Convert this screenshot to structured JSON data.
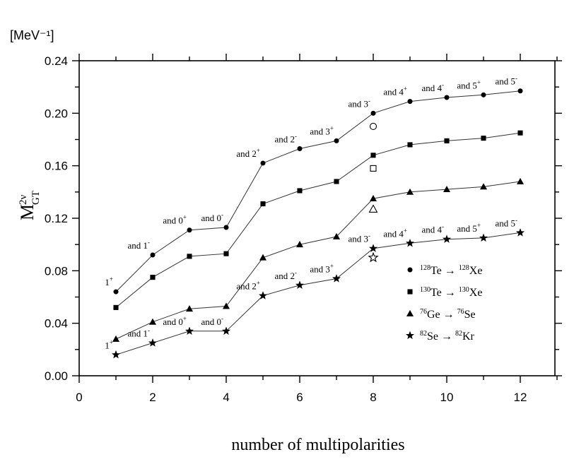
{
  "chart_data": {
    "type": "line",
    "unit_label": "[MeV⁻¹]",
    "xlabel": "number of multipolarities",
    "ylabel": "M",
    "ylabel_sup": "2ν",
    "ylabel_sub": "GT",
    "xlim": [
      0,
      13
    ],
    "ylim": [
      0,
      0.24
    ],
    "x_ticks": [
      "0",
      "2",
      "4",
      "6",
      "8",
      "10",
      "12"
    ],
    "y_ticks": [
      "0.00",
      "0.04",
      "0.08",
      "0.12",
      "0.16",
      "0.20",
      "0.24"
    ],
    "grid": false,
    "legend_position": "lower-right",
    "x": [
      1,
      2,
      3,
      4,
      5,
      6,
      7,
      8,
      9,
      10,
      11,
      12
    ],
    "series": [
      {
        "name_parts": [
          "128",
          "Te → ",
          "128",
          "Xe"
        ],
        "marker": "circle",
        "values": [
          0.064,
          0.092,
          0.111,
          0.113,
          0.162,
          0.173,
          0.179,
          0.2,
          0.209,
          0.212,
          0.214,
          0.217
        ],
        "open_point": {
          "x": 8,
          "y": 0.19
        }
      },
      {
        "name_parts": [
          "130",
          "Te → ",
          "130",
          "Xe"
        ],
        "marker": "square",
        "values": [
          0.052,
          0.075,
          0.091,
          0.093,
          0.131,
          0.141,
          0.148,
          0.168,
          0.176,
          0.179,
          0.181,
          0.185
        ],
        "open_point": {
          "x": 8,
          "y": 0.158
        }
      },
      {
        "name_parts": [
          "76",
          "Ge → ",
          "76",
          "Se"
        ],
        "marker": "triangle",
        "values": [
          0.028,
          0.041,
          0.051,
          0.053,
          0.09,
          0.1,
          0.106,
          0.135,
          0.14,
          0.142,
          0.144,
          0.148
        ],
        "open_point": {
          "x": 8,
          "y": 0.127
        }
      },
      {
        "name_parts": [
          "82",
          "Se → ",
          "82",
          "Kr"
        ],
        "marker": "star",
        "values": [
          0.016,
          0.025,
          0.034,
          0.034,
          0.061,
          0.069,
          0.074,
          0.097,
          0.101,
          0.104,
          0.105,
          0.109
        ],
        "open_point": {
          "x": 8,
          "y": 0.09
        }
      }
    ],
    "annotations_upper": [
      {
        "text": "1",
        "sup": "+",
        "x": 1,
        "y": 0.064
      },
      {
        "text": "and 1",
        "sup": "-",
        "x": 2,
        "y": 0.092
      },
      {
        "text": "and 0",
        "sup": "+",
        "x": 3,
        "y": 0.111
      },
      {
        "text": "and 0",
        "sup": "-",
        "x": 4,
        "y": 0.113
      },
      {
        "text": "and 2",
        "sup": "+",
        "x": 5,
        "y": 0.162
      },
      {
        "text": "and 2",
        "sup": "-",
        "x": 6,
        "y": 0.173
      },
      {
        "text": "and 3",
        "sup": "+",
        "x": 7,
        "y": 0.179
      },
      {
        "text": "and 3",
        "sup": "-",
        "x": 8,
        "y": 0.2
      },
      {
        "text": "and 4",
        "sup": "+",
        "x": 9,
        "y": 0.209
      },
      {
        "text": "and 4",
        "sup": "-",
        "x": 10,
        "y": 0.212
      },
      {
        "text": "and 5",
        "sup": "+",
        "x": 11,
        "y": 0.214
      },
      {
        "text": "and 5",
        "sup": "-",
        "x": 12,
        "y": 0.217
      }
    ],
    "annotations_lower": [
      {
        "text": "1",
        "sup": "+",
        "x": 1,
        "y": 0.016
      },
      {
        "text": "and 1",
        "sup": "-",
        "x": 2,
        "y": 0.025
      },
      {
        "text": "and 0",
        "sup": "+",
        "x": 3,
        "y": 0.034
      },
      {
        "text": "and 0",
        "sup": "-",
        "x": 4,
        "y": 0.034
      },
      {
        "text": "and 2",
        "sup": "+",
        "x": 5,
        "y": 0.061
      },
      {
        "text": "and 2",
        "sup": "-",
        "x": 6,
        "y": 0.069
      },
      {
        "text": "and 3",
        "sup": "+",
        "x": 7,
        "y": 0.074
      },
      {
        "text": "and 3",
        "sup": "-",
        "x": 8,
        "y": 0.097
      },
      {
        "text": "and 4",
        "sup": "+",
        "x": 9,
        "y": 0.101
      },
      {
        "text": "and 4",
        "sup": "-",
        "x": 10,
        "y": 0.104
      },
      {
        "text": "and 5",
        "sup": "+",
        "x": 11,
        "y": 0.105
      },
      {
        "text": "and 5",
        "sup": "-",
        "x": 12,
        "y": 0.109
      }
    ]
  }
}
